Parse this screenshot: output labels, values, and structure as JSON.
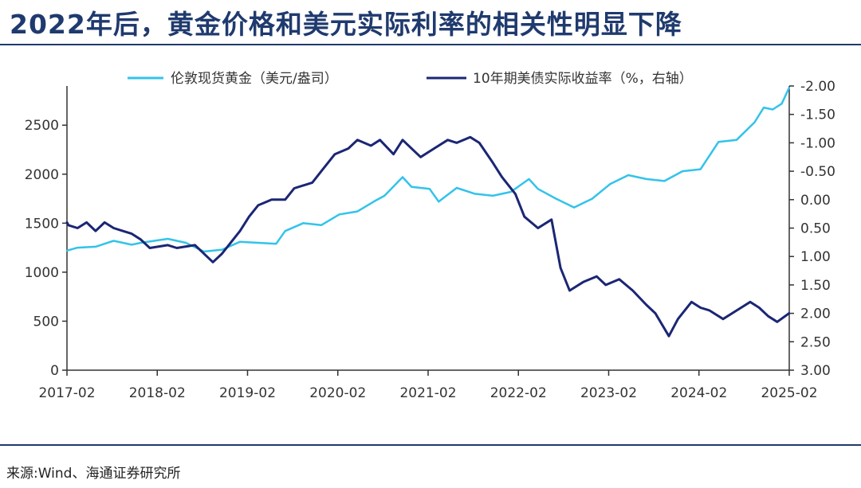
{
  "header": {
    "title": "2022年后，黄金价格和美元实际利率的相关性明显下降"
  },
  "footer": {
    "source": "来源:Wind、海通证券研究所"
  },
  "colors": {
    "gold": "#33c3ea",
    "rate": "#1b2674",
    "title": "#1f3a6e"
  },
  "chart_data": {
    "type": "line",
    "title": "2022年后，黄金价格和美元实际利率的相关性明显下降",
    "x_ticks": [
      "2017-02",
      "2018-02",
      "2019-02",
      "2020-02",
      "2021-02",
      "2022-02",
      "2023-02",
      "2024-02",
      "2025-02"
    ],
    "x_start_year": 2017.083,
    "x_end_year": 2025.083,
    "left_axis": {
      "ylim": [
        0,
        2900
      ],
      "ticks": [
        "0",
        "500",
        "1000",
        "1500",
        "2000",
        "2500"
      ],
      "tick_values": [
        0,
        500,
        1000,
        1500,
        2000,
        2500
      ]
    },
    "right_axis": {
      "ylim": [
        3.0,
        -2.0
      ],
      "inverted": true,
      "ticks": [
        "-2.00",
        "-1.50",
        "-1.00",
        "-0.50",
        "0.00",
        "0.50",
        "1.00",
        "1.50",
        "2.00",
        "2.50",
        "3.00"
      ],
      "tick_values": [
        -2.0,
        -1.5,
        -1.0,
        -0.5,
        0.0,
        0.5,
        1.0,
        1.5,
        2.0,
        2.5,
        3.0
      ]
    },
    "legend_position": "top",
    "series": [
      {
        "name": "伦敦现货黄金（美元/盎司）",
        "axis": "left",
        "color": "#33c3ea",
        "x": [
          2017.0,
          2017.2,
          2017.4,
          2017.6,
          2017.8,
          2017.9,
          2018.2,
          2018.4,
          2018.6,
          2018.8,
          2019.0,
          2019.2,
          2019.4,
          2019.5,
          2019.7,
          2019.9,
          2020.1,
          2020.3,
          2020.5,
          2020.6,
          2020.8,
          2020.9,
          2021.1,
          2021.2,
          2021.4,
          2021.6,
          2021.8,
          2022.0,
          2022.2,
          2022.3,
          2022.5,
          2022.7,
          2022.9,
          2023.1,
          2023.3,
          2023.5,
          2023.7,
          2023.9,
          2024.1,
          2024.3,
          2024.5,
          2024.7,
          2024.8,
          2024.9,
          2025.0,
          2025.08
        ],
        "values": [
          1220,
          1250,
          1260,
          1320,
          1280,
          1300,
          1340,
          1300,
          1210,
          1230,
          1310,
          1300,
          1290,
          1420,
          1500,
          1480,
          1590,
          1620,
          1730,
          1780,
          1970,
          1870,
          1850,
          1720,
          1860,
          1800,
          1780,
          1820,
          1950,
          1850,
          1750,
          1660,
          1750,
          1900,
          1990,
          1950,
          1930,
          2030,
          2050,
          2330,
          2350,
          2530,
          2680,
          2660,
          2720,
          2880
        ]
      },
      {
        "name": "10年期美债实际收益率（%，右轴）",
        "axis": "right",
        "color": "#1b2674",
        "x": [
          2017.0,
          2017.1,
          2017.2,
          2017.3,
          2017.4,
          2017.5,
          2017.6,
          2017.7,
          2017.8,
          2017.9,
          2018.0,
          2018.2,
          2018.3,
          2018.5,
          2018.7,
          2018.8,
          2018.9,
          2019.0,
          2019.1,
          2019.2,
          2019.35,
          2019.5,
          2019.6,
          2019.8,
          2019.9,
          2020.05,
          2020.2,
          2020.3,
          2020.45,
          2020.55,
          2020.7,
          2020.8,
          2021.0,
          2021.15,
          2021.3,
          2021.4,
          2021.55,
          2021.65,
          2021.8,
          2021.9,
          2022.05,
          2022.15,
          2022.3,
          2022.45,
          2022.55,
          2022.65,
          2022.8,
          2022.95,
          2023.05,
          2023.2,
          2023.35,
          2023.5,
          2023.6,
          2023.75,
          2023.85,
          2024.0,
          2024.1,
          2024.2,
          2024.35,
          2024.5,
          2024.65,
          2024.75,
          2024.85,
          2024.95,
          2025.08
        ],
        "values": [
          0.4,
          0.45,
          0.5,
          0.4,
          0.55,
          0.4,
          0.5,
          0.55,
          0.6,
          0.7,
          0.85,
          0.8,
          0.85,
          0.8,
          1.1,
          0.95,
          0.75,
          0.55,
          0.3,
          0.1,
          0.0,
          0.0,
          -0.2,
          -0.3,
          -0.5,
          -0.8,
          -0.9,
          -1.05,
          -0.95,
          -1.05,
          -0.8,
          -1.05,
          -0.75,
          -0.9,
          -1.05,
          -1.0,
          -1.1,
          -1.0,
          -0.65,
          -0.4,
          -0.1,
          0.3,
          0.5,
          0.35,
          1.2,
          1.6,
          1.45,
          1.35,
          1.5,
          1.4,
          1.6,
          1.85,
          2.0,
          2.4,
          2.1,
          1.8,
          1.9,
          1.95,
          2.1,
          1.95,
          1.8,
          1.9,
          2.05,
          2.15,
          2.0
        ]
      }
    ]
  }
}
